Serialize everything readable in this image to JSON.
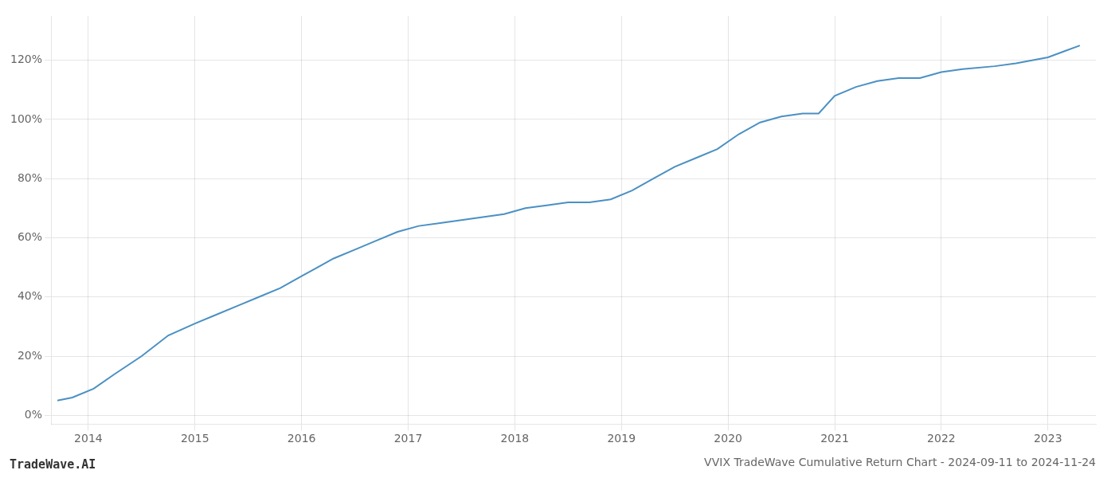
{
  "chart_data": {
    "type": "line",
    "title": "VVIX TradeWave Cumulative Return Chart - 2024-09-11 to 2024-11-24",
    "annotations": [
      "TradeWave.AI"
    ],
    "x": [
      2013.71,
      2013.85,
      2014.05,
      2014.25,
      2014.5,
      2014.75,
      2015.0,
      2015.2,
      2015.4,
      2015.6,
      2015.8,
      2016.0,
      2016.15,
      2016.3,
      2016.5,
      2016.7,
      2016.9,
      2017.1,
      2017.3,
      2017.5,
      2017.7,
      2017.9,
      2018.1,
      2018.3,
      2018.5,
      2018.7,
      2018.9,
      2019.1,
      2019.3,
      2019.5,
      2019.7,
      2019.9,
      2020.1,
      2020.3,
      2020.5,
      2020.7,
      2020.85,
      2021.0,
      2021.2,
      2021.4,
      2021.6,
      2021.8,
      2022.0,
      2022.2,
      2022.5,
      2022.7,
      2022.85,
      2023.0,
      2023.15,
      2023.3
    ],
    "values": [
      5,
      6,
      9,
      14,
      20,
      27,
      31,
      34,
      37,
      40,
      43,
      47,
      50,
      53,
      56,
      59,
      62,
      64,
      65,
      66,
      67,
      68,
      70,
      71,
      72,
      72,
      73,
      76,
      80,
      84,
      87,
      90,
      95,
      99,
      101,
      102,
      102,
      108,
      111,
      113,
      114,
      114,
      116,
      117,
      118,
      119,
      120,
      121,
      123,
      125
    ],
    "color": "#4a90c4",
    "xlim": [
      2013.65,
      2023.45
    ],
    "xticks": [
      2014,
      2015,
      2016,
      2017,
      2018,
      2019,
      2020,
      2021,
      2022,
      2023
    ],
    "ylim": [
      -3,
      135
    ],
    "yticks": [
      {
        "value": 0,
        "label": "0%"
      },
      {
        "value": 20,
        "label": "20%"
      },
      {
        "value": 40,
        "label": "40%"
      },
      {
        "value": 60,
        "label": "60%"
      },
      {
        "value": 80,
        "label": "80%"
      },
      {
        "value": 100,
        "label": "100%"
      },
      {
        "value": 120,
        "label": "120%"
      }
    ],
    "grid": true
  }
}
